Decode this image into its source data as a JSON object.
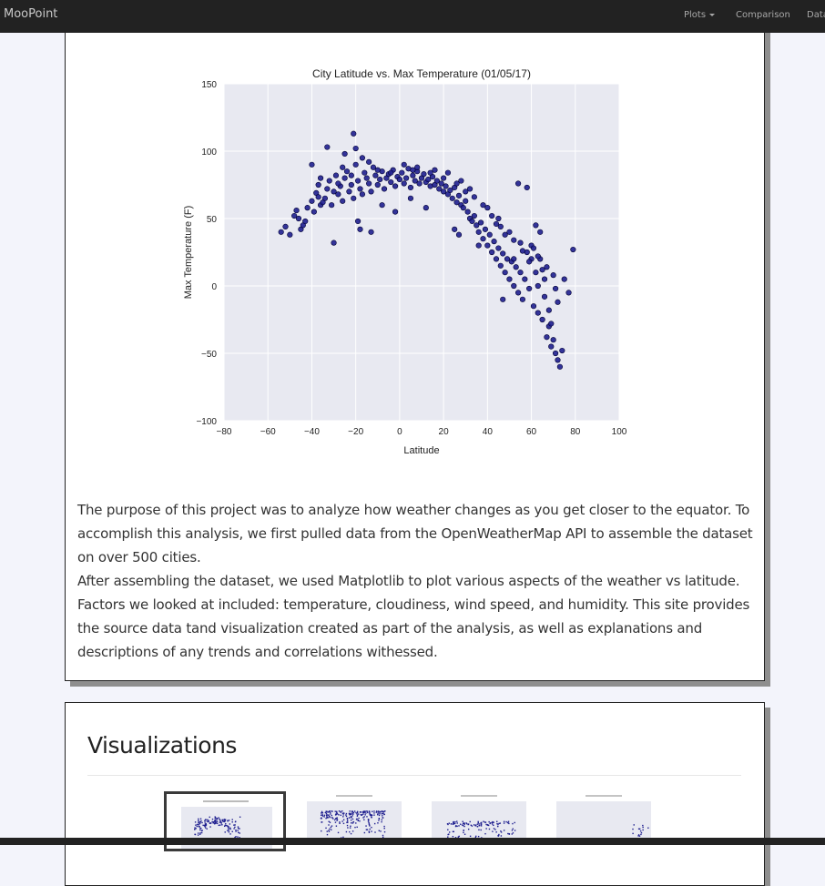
{
  "navbar": {
    "brand": "MooPoint",
    "items": [
      {
        "label": "Plots",
        "dropdown": true
      },
      {
        "label": "Comparison"
      },
      {
        "label": "Data"
      }
    ]
  },
  "chart_data": {
    "type": "scatter",
    "title": "City Latitude vs. Max Temperature (01/05/17)",
    "xlabel": "Latitude",
    "ylabel": "Max Temperature (F)",
    "xlim": [
      -80,
      100
    ],
    "ylim": [
      -100,
      150
    ],
    "xticks": [
      -80,
      -60,
      -40,
      -20,
      0,
      20,
      40,
      60,
      80,
      100
    ],
    "yticks": [
      -100,
      -50,
      0,
      50,
      100,
      150
    ],
    "grid": true,
    "marker_color": "#1f1f8f",
    "background": "#e8e9f1",
    "points": [
      [
        -54,
        40
      ],
      [
        -52,
        44
      ],
      [
        -50,
        38
      ],
      [
        -47,
        56
      ],
      [
        -46,
        50
      ],
      [
        -45,
        42
      ],
      [
        -44,
        45
      ],
      [
        -42,
        58
      ],
      [
        -40,
        63
      ],
      [
        -39,
        55
      ],
      [
        -38,
        69
      ],
      [
        -37,
        75
      ],
      [
        -36,
        60
      ],
      [
        -35,
        62
      ],
      [
        -34,
        65
      ],
      [
        -33,
        72
      ],
      [
        -32,
        78
      ],
      [
        -31,
        60
      ],
      [
        -30,
        70
      ],
      [
        -29,
        82
      ],
      [
        -28,
        68
      ],
      [
        -27,
        74
      ],
      [
        -26,
        63
      ],
      [
        -25,
        80
      ],
      [
        -24,
        85
      ],
      [
        -23,
        70
      ],
      [
        -22,
        75
      ],
      [
        -21,
        65
      ],
      [
        -20,
        90
      ],
      [
        -19,
        78
      ],
      [
        -18,
        72
      ],
      [
        -17,
        68
      ],
      [
        -16,
        84
      ],
      [
        -15,
        80
      ],
      [
        -14,
        76
      ],
      [
        -13,
        70
      ],
      [
        -12,
        88
      ],
      [
        -11,
        82
      ],
      [
        -10,
        75
      ],
      [
        -9,
        79
      ],
      [
        -8,
        85
      ],
      [
        -7,
        72
      ],
      [
        -6,
        80
      ],
      [
        -5,
        83
      ],
      [
        -4,
        77
      ],
      [
        -3,
        86
      ],
      [
        -2,
        74
      ],
      [
        -1,
        81
      ],
      [
        0,
        79
      ],
      [
        1,
        84
      ],
      [
        2,
        76
      ],
      [
        3,
        80
      ],
      [
        4,
        87
      ],
      [
        5,
        73
      ],
      [
        6,
        82
      ],
      [
        7,
        78
      ],
      [
        8,
        85
      ],
      [
        9,
        76
      ],
      [
        10,
        80
      ],
      [
        11,
        83
      ],
      [
        12,
        77
      ],
      [
        13,
        79
      ],
      [
        14,
        74
      ],
      [
        15,
        81
      ],
      [
        16,
        75
      ],
      [
        17,
        78
      ],
      [
        18,
        72
      ],
      [
        19,
        76
      ],
      [
        20,
        70
      ],
      [
        21,
        74
      ],
      [
        22,
        68
      ],
      [
        23,
        71
      ],
      [
        24,
        65
      ],
      [
        25,
        73
      ],
      [
        26,
        62
      ],
      [
        27,
        67
      ],
      [
        28,
        60
      ],
      [
        29,
        58
      ],
      [
        30,
        63
      ],
      [
        31,
        55
      ],
      [
        32,
        50
      ],
      [
        33,
        48
      ],
      [
        34,
        52
      ],
      [
        35,
        45
      ],
      [
        36,
        40
      ],
      [
        37,
        47
      ],
      [
        38,
        35
      ],
      [
        39,
        42
      ],
      [
        40,
        30
      ],
      [
        41,
        38
      ],
      [
        42,
        25
      ],
      [
        43,
        33
      ],
      [
        44,
        20
      ],
      [
        45,
        28
      ],
      [
        46,
        15
      ],
      [
        47,
        24
      ],
      [
        48,
        10
      ],
      [
        49,
        20
      ],
      [
        50,
        5
      ],
      [
        51,
        18
      ],
      [
        52,
        0
      ],
      [
        53,
        14
      ],
      [
        54,
        -5
      ],
      [
        55,
        10
      ],
      [
        56,
        -10
      ],
      [
        57,
        5
      ],
      [
        58,
        25
      ],
      [
        59,
        -2
      ],
      [
        60,
        30
      ],
      [
        61,
        -15
      ],
      [
        62,
        10
      ],
      [
        63,
        -20
      ],
      [
        64,
        20
      ],
      [
        65,
        -25
      ],
      [
        66,
        5
      ],
      [
        67,
        -38
      ],
      [
        68,
        -30
      ],
      [
        69,
        -45
      ],
      [
        70,
        -40
      ],
      [
        71,
        -50
      ],
      [
        72,
        -55
      ],
      [
        73,
        -60
      ],
      [
        75,
        5
      ],
      [
        77,
        -5
      ],
      [
        79,
        27
      ],
      [
        -40,
        90
      ],
      [
        -33,
        103
      ],
      [
        -25,
        98
      ],
      [
        -20,
        102
      ],
      [
        -21,
        113
      ],
      [
        -17,
        95
      ],
      [
        -30,
        32
      ],
      [
        -19,
        48
      ],
      [
        -18,
        42
      ],
      [
        -13,
        40
      ],
      [
        -8,
        60
      ],
      [
        -2,
        55
      ],
      [
        5,
        65
      ],
      [
        12,
        58
      ],
      [
        25,
        42
      ],
      [
        27,
        38
      ],
      [
        32,
        72
      ],
      [
        36,
        30
      ],
      [
        45,
        50
      ],
      [
        47,
        -10
      ],
      [
        50,
        40
      ],
      [
        52,
        20
      ],
      [
        54,
        76
      ],
      [
        58,
        73
      ],
      [
        60,
        20
      ],
      [
        62,
        45
      ],
      [
        63,
        0
      ],
      [
        66,
        -8
      ],
      [
        68,
        -18
      ],
      [
        70,
        8
      ],
      [
        -36,
        80
      ],
      [
        -26,
        88
      ],
      [
        -14,
        92
      ],
      [
        2,
        90
      ],
      [
        8,
        88
      ],
      [
        16,
        86
      ],
      [
        22,
        84
      ],
      [
        28,
        78
      ],
      [
        34,
        66
      ],
      [
        40,
        58
      ],
      [
        44,
        46
      ],
      [
        48,
        38
      ],
      [
        55,
        32
      ],
      [
        61,
        28
      ],
      [
        64,
        40
      ],
      [
        67,
        14
      ],
      [
        71,
        -2
      ],
      [
        -48,
        52
      ],
      [
        -43,
        48
      ],
      [
        -37,
        66
      ],
      [
        -28,
        76
      ],
      [
        -22,
        82
      ],
      [
        -10,
        86
      ],
      [
        -4,
        84
      ],
      [
        6,
        86
      ],
      [
        14,
        84
      ],
      [
        20,
        80
      ],
      [
        26,
        76
      ],
      [
        30,
        70
      ],
      [
        38,
        60
      ],
      [
        42,
        52
      ],
      [
        46,
        44
      ],
      [
        52,
        34
      ],
      [
        56,
        26
      ],
      [
        59,
        18
      ],
      [
        63,
        22
      ],
      [
        65,
        12
      ],
      [
        69,
        -28
      ],
      [
        72,
        -12
      ],
      [
        74,
        -48
      ]
    ]
  },
  "description": {
    "paragraph1": "The purpose of this project was to analyze how weather changes as you get closer to the equator. To accomplish this analysis, we first pulled data from the OpenWeatherMap API to assemble the dataset on over 500 cities.",
    "paragraph2": "After assembling the dataset, we used Matplotlib to plot various aspects of the weather vs latitude. Factors we looked at included: temperature, cloudiness, wind speed, and humidity. This site provides the source data tand visualization created as part of the analysis, as well as explanations and descriptions of any trends and correlations withessed."
  },
  "visualizations": {
    "title": "Visualizations",
    "thumbnails": [
      {
        "name": "temperature",
        "active": true
      },
      {
        "name": "humidity",
        "active": false
      },
      {
        "name": "cloudiness",
        "active": false
      },
      {
        "name": "wind-speed",
        "active": false
      }
    ]
  }
}
